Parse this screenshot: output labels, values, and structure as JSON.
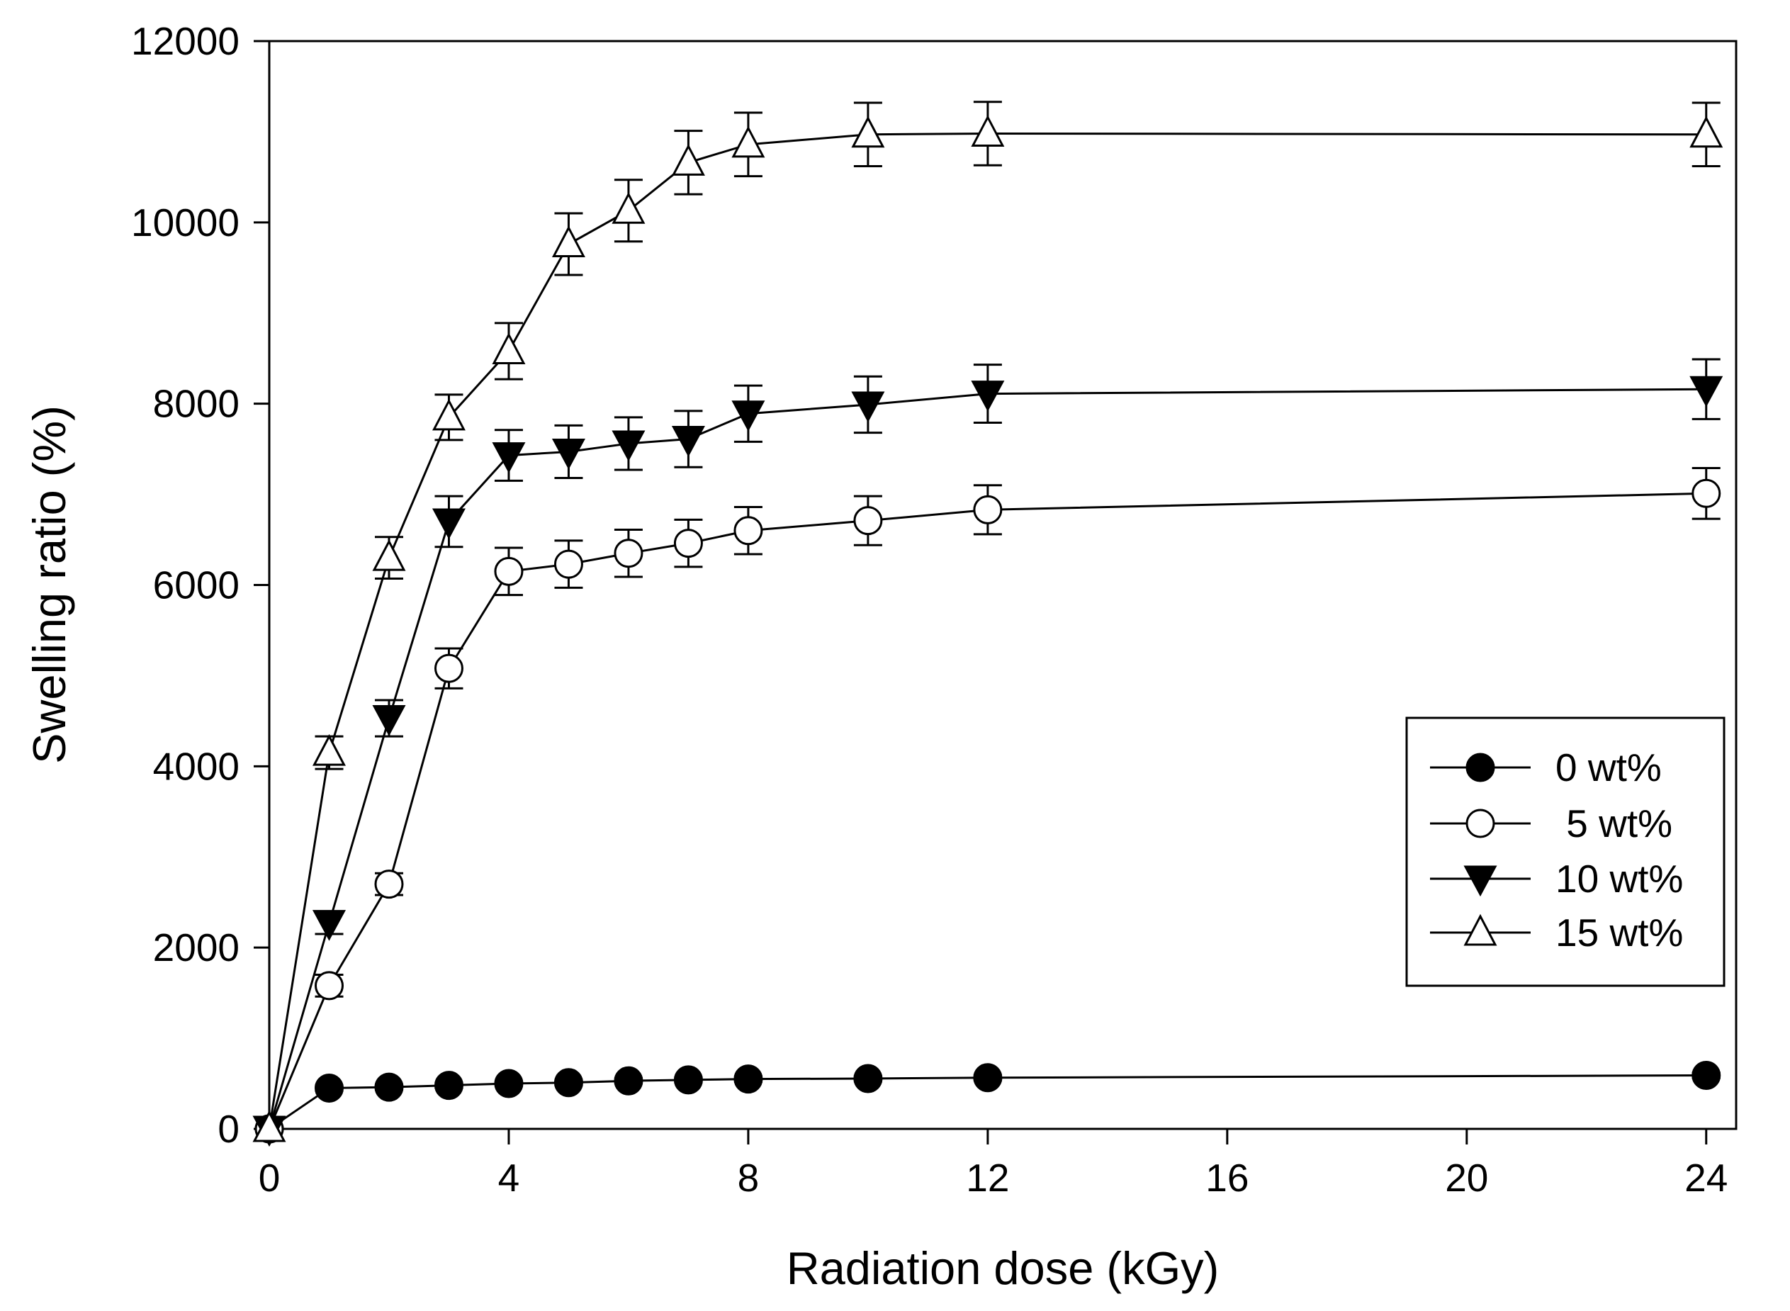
{
  "chart_data": {
    "type": "line",
    "title": "",
    "xlabel": "Radiation dose (kGy)",
    "ylabel": "Swelling ratio (%)",
    "xlim": [
      0,
      24.5
    ],
    "ylim": [
      0,
      12000
    ],
    "xticks": [
      0,
      4,
      8,
      12,
      16,
      20,
      24
    ],
    "yticks": [
      0,
      2000,
      4000,
      6000,
      8000,
      10000,
      12000
    ],
    "x": [
      0,
      1,
      2,
      3,
      4,
      5,
      6,
      7,
      8,
      10,
      12,
      24
    ],
    "legend_position": "center-right",
    "series": [
      {
        "name": "0 wt%",
        "marker": "filled-circle",
        "values": [
          0,
          450,
          460,
          480,
          500,
          510,
          530,
          540,
          550,
          555,
          565,
          590
        ],
        "errors": [
          0,
          30,
          30,
          30,
          30,
          30,
          30,
          30,
          30,
          30,
          30,
          30
        ]
      },
      {
        "name": " 5 wt%",
        "marker": "open-circle",
        "values": [
          0,
          1580,
          2700,
          5080,
          6150,
          6230,
          6350,
          6460,
          6600,
          6710,
          6830,
          7010
        ],
        "errors": [
          0,
          120,
          120,
          220,
          260,
          260,
          260,
          260,
          260,
          270,
          270,
          280
        ]
      },
      {
        "name": "10 wt%",
        "marker": "filled-triangle-down",
        "values": [
          0,
          2270,
          4530,
          6700,
          7430,
          7470,
          7560,
          7610,
          7890,
          7990,
          8110,
          8160
        ],
        "errors": [
          0,
          120,
          200,
          280,
          280,
          290,
          290,
          310,
          310,
          310,
          320,
          330
        ]
      },
      {
        "name": "15 wt%",
        "marker": "open-triangle-up",
        "values": [
          0,
          4150,
          6300,
          7850,
          8580,
          9760,
          10130,
          10660,
          10860,
          10970,
          10980,
          10970
        ],
        "errors": [
          0,
          180,
          230,
          250,
          310,
          340,
          340,
          350,
          350,
          350,
          350,
          350
        ]
      }
    ]
  }
}
